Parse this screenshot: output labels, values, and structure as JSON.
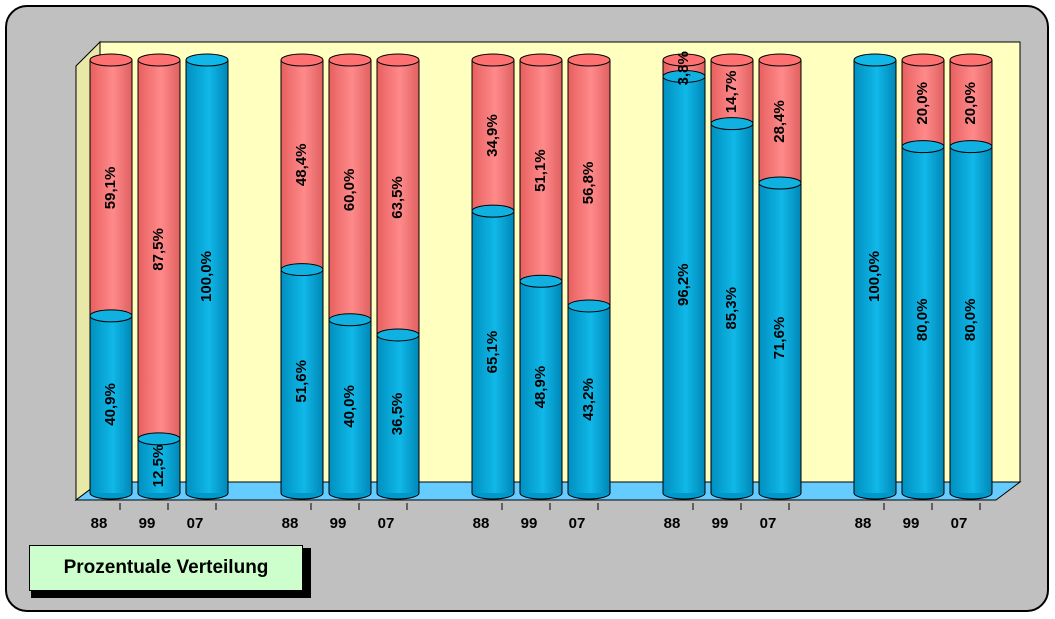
{
  "chart_data": {
    "type": "bar",
    "stacked": true,
    "orientation": "vertical",
    "style": "3d-cylinder",
    "title": "",
    "xlabel": "",
    "ylabel": "",
    "ylim": [
      0,
      100
    ],
    "unit": "%",
    "categories": [
      "88",
      "99",
      "07",
      "88",
      "99",
      "07",
      "88",
      "99",
      "07",
      "88",
      "99",
      "07",
      "88",
      "99",
      "07"
    ],
    "groups": [
      {
        "categories": [
          "88",
          "99",
          "07"
        ]
      },
      {
        "categories": [
          "88",
          "99",
          "07"
        ]
      },
      {
        "categories": [
          "88",
          "99",
          "07"
        ]
      },
      {
        "categories": [
          "88",
          "99",
          "07"
        ]
      },
      {
        "categories": [
          "88",
          "99",
          "07"
        ]
      }
    ],
    "series": [
      {
        "color": "#00b0e0",
        "values": [
          40.9,
          12.5,
          100.0,
          51.6,
          40.0,
          36.5,
          65.1,
          48.9,
          43.2,
          96.2,
          85.3,
          71.6,
          100.0,
          80.0,
          80.0
        ],
        "labels": [
          "40,9%",
          "12,5%",
          "100,0%",
          "51,6%",
          "40,0%",
          "36,5%",
          "65,1%",
          "48,9%",
          "43,2%",
          "96,2%",
          "85,3%",
          "71,6%",
          "100,0%",
          "80,0%",
          "80,0%"
        ]
      },
      {
        "color": "#ff7f7f",
        "values": [
          59.1,
          87.5,
          0,
          48.4,
          60.0,
          63.5,
          34.9,
          51.1,
          56.8,
          3.8,
          14.7,
          28.4,
          0,
          20.0,
          20.0
        ],
        "labels": [
          "59,1%",
          "87,5%",
          "",
          "48,4%",
          "60,0%",
          "63,5%",
          "34,9%",
          "51,1%",
          "56,8%",
          "3,8%",
          "14,7%",
          "28,4%",
          "",
          "20,0%",
          "20,0%"
        ]
      }
    ],
    "grid": false,
    "legend": "none",
    "colors": {
      "plot_wall": "#ffffc0",
      "floor": "#66ccff",
      "background": "#c0c0c0"
    }
  },
  "legend_box": {
    "label": "Prozentuale Verteilung"
  }
}
